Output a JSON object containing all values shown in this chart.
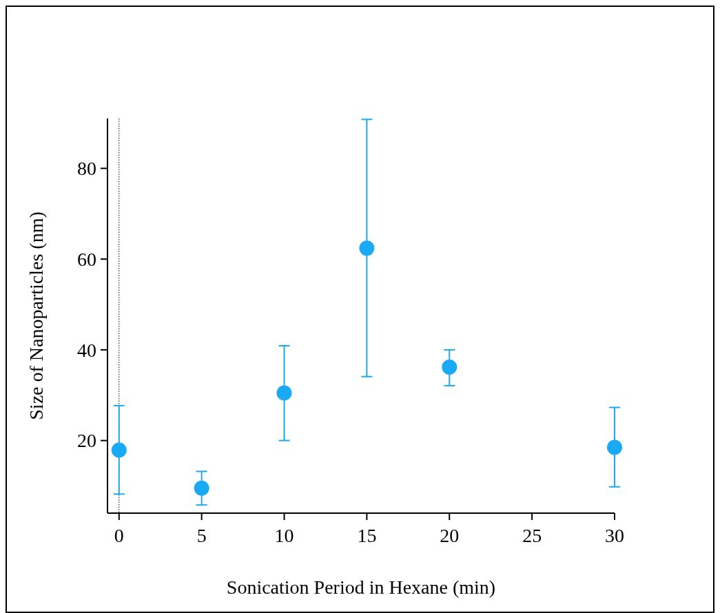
{
  "chart_data": {
    "type": "scatter",
    "xlabel": "Sonication Period in Hexane (min)",
    "ylabel": "Size of Nanoparticles (nm)",
    "x": [
      0,
      5,
      10,
      15,
      20,
      30
    ],
    "values": [
      17.9,
      9.5,
      30.5,
      62.4,
      36.2,
      18.5
    ],
    "errors": [
      [
        8.2,
        27.7
      ],
      [
        5.8,
        13.2
      ],
      [
        20,
        40.9
      ],
      [
        34.1,
        90.8
      ],
      [
        32.1,
        40
      ],
      [
        9.8,
        27.3
      ]
    ],
    "color": "#1aa9f5",
    "marker": "circle",
    "xlim": [
      -0.7,
      30
    ],
    "xticks": [
      0,
      5,
      10,
      15,
      20,
      25,
      30
    ],
    "ylim": [
      4,
      91
    ],
    "yticks": [
      20,
      40,
      60,
      80
    ],
    "ref_lines": [
      {
        "axis": "x",
        "value": 0,
        "line_style": "dotted",
        "color": "#000000"
      }
    ],
    "grid": false
  }
}
